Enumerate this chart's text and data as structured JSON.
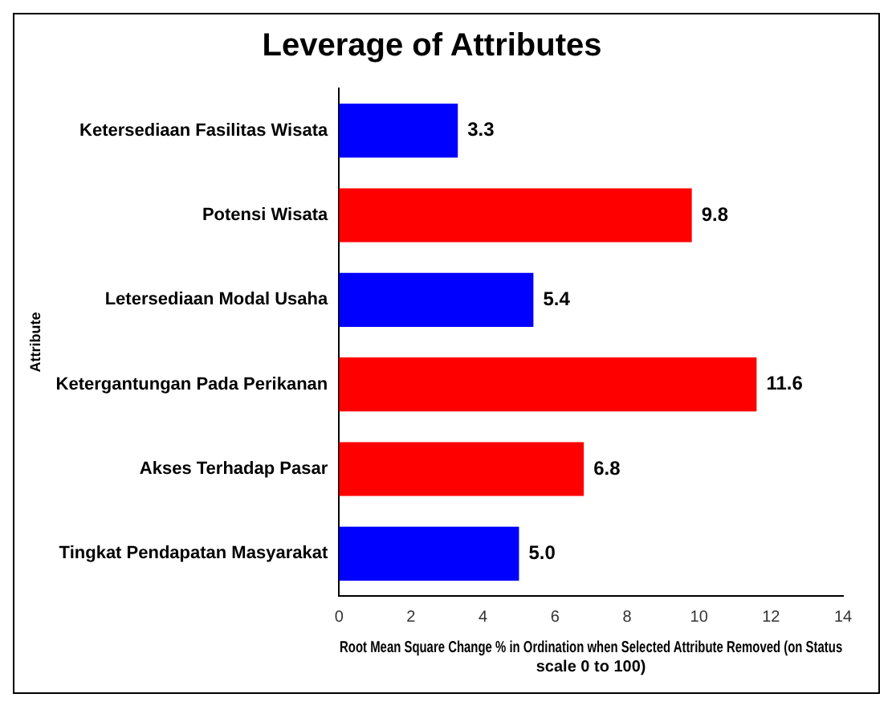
{
  "chart_data": {
    "type": "bar",
    "orientation": "horizontal",
    "title": "Leverage of Attributes",
    "xlabel": "Root Mean Square Change % in Ordination when Selected Attribute Removed (on Status scale 0 to 100)",
    "ylabel": "Attribute",
    "categories": [
      "Ketersediaan Fasilitas Wisata",
      "Potensi Wisata",
      "Letersediaan Modal Usaha",
      "Ketergantungan Pada Perikanan",
      "Akses Terhadap Pasar",
      "Tingkat Pendapatan Masyarakat"
    ],
    "values": [
      3.3,
      9.8,
      5.4,
      11.6,
      6.8,
      5.0
    ],
    "colors": [
      "#0000ff",
      "#ff0000",
      "#0000ff",
      "#ff0000",
      "#ff0000",
      "#0000ff"
    ],
    "value_labels": [
      "3.3",
      "9.8",
      "5.4",
      "11.6",
      "6.8",
      "5.0"
    ],
    "xlim": [
      0,
      14
    ],
    "xticks": [
      0,
      2,
      4,
      6,
      8,
      10,
      12,
      14
    ],
    "grid": false,
    "legend": false
  }
}
